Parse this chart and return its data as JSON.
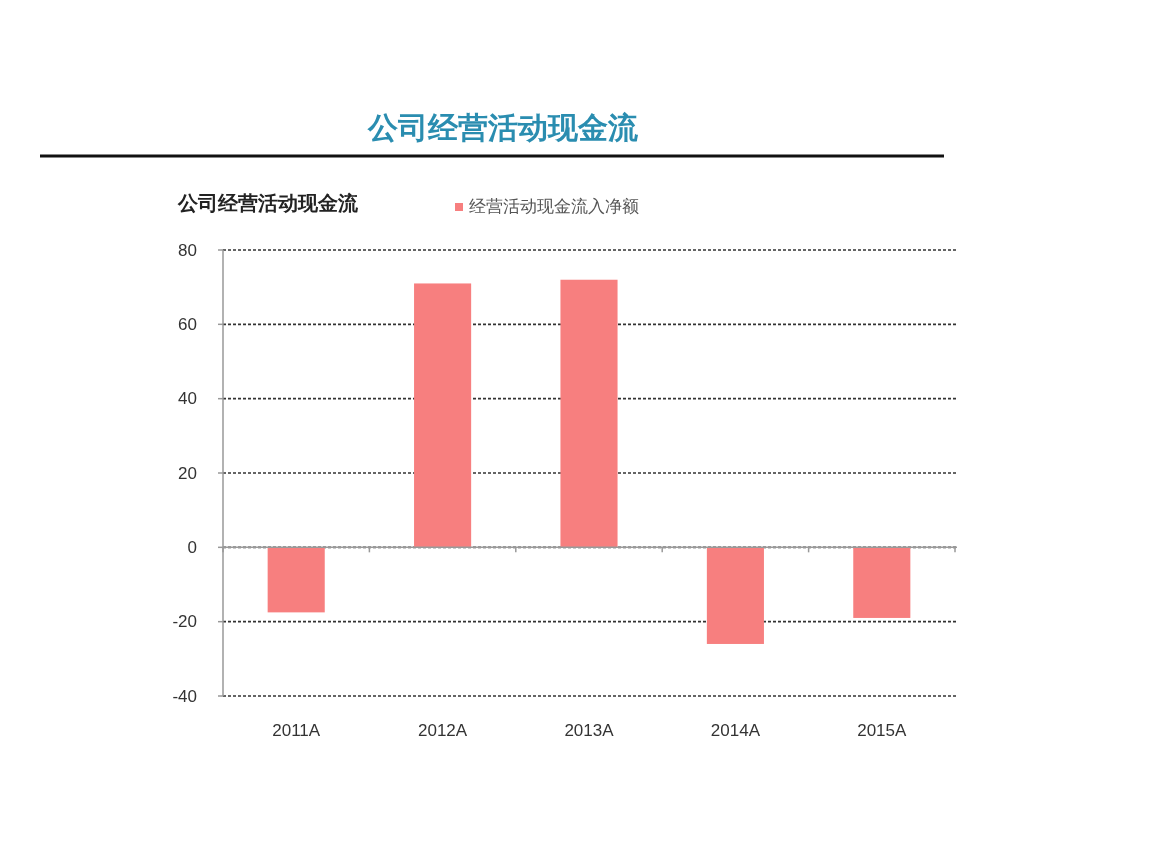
{
  "chart_data": {
    "type": "bar",
    "title": "公司经营活动现金流",
    "subtitle": "公司经营活动现金流",
    "categories": [
      "2011A",
      "2012A",
      "2013A",
      "2014A",
      "2015A"
    ],
    "series": [
      {
        "name": "经营活动现金流入净额",
        "color": "#f77f7f",
        "values": [
          -17.5,
          71,
          72,
          -26,
          -19
        ]
      }
    ],
    "ylim": [
      -40,
      80
    ],
    "yticks": [
      -40,
      -20,
      0,
      20,
      40,
      60,
      80
    ],
    "grid": "y",
    "legend": "top"
  }
}
